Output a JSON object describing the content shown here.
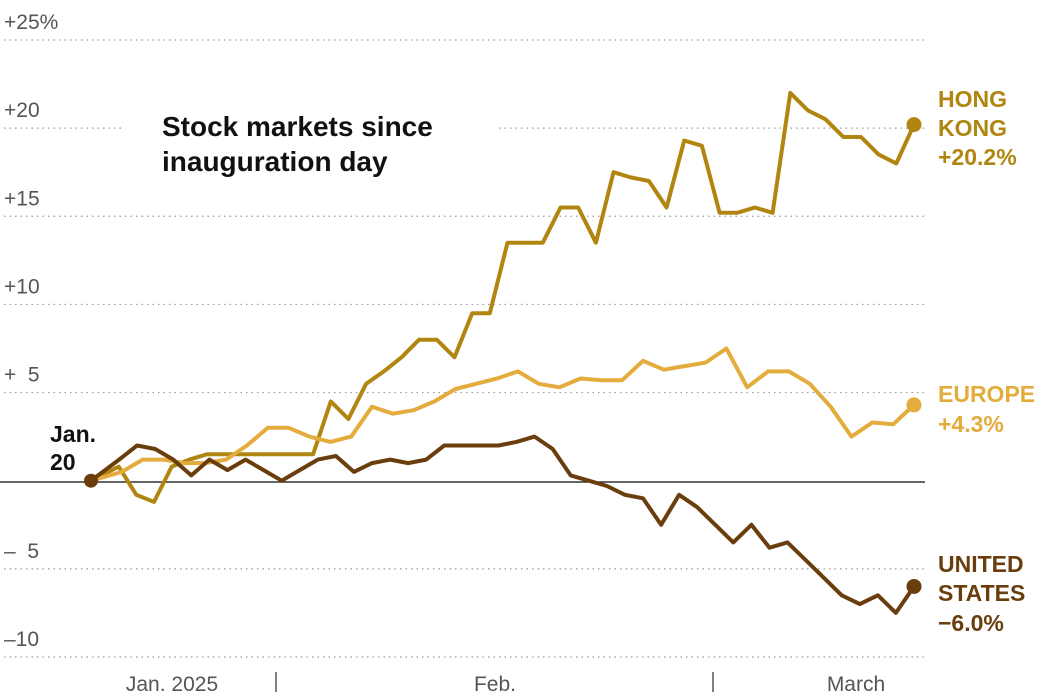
{
  "chart_data": {
    "type": "line",
    "title_lines": [
      "Stock markets since",
      "inauguration day"
    ],
    "start_label": [
      "Jan.",
      "20"
    ],
    "ylim": [
      -10,
      25
    ],
    "grid": true,
    "y_ticks": [
      {
        "value": 25,
        "label": "+25%"
      },
      {
        "value": 20,
        "label": "+20"
      },
      {
        "value": 15,
        "label": "+15"
      },
      {
        "value": 10,
        "label": "+10"
      },
      {
        "value": 5,
        "label": "+  5"
      },
      {
        "value": -5,
        "label": "–  5"
      },
      {
        "value": -10,
        "label": "–10"
      }
    ],
    "x_labels": [
      "Jan. 2025",
      "Feb.",
      "March"
    ],
    "series": [
      {
        "name": "HONG KONG",
        "label_lines": [
          "HONG",
          "KONG"
        ],
        "end_value_label": "+20.2%",
        "color": "#b08510",
        "values": [
          0,
          0.8,
          -0.8,
          -1.2,
          0.8,
          1.2,
          1.5,
          1.5,
          1.5,
          1.5,
          1.5,
          1.5,
          1.5,
          4.5,
          3.5,
          5.5,
          6.2,
          7.0,
          8.0,
          8.0,
          7.0,
          9.5,
          9.5,
          13.5,
          13.5,
          13.5,
          15.5,
          15.5,
          13.5,
          17.5,
          17.2,
          17.0,
          15.5,
          19.3,
          19.0,
          15.2,
          15.2,
          15.5,
          15.2,
          22.0,
          21.0,
          20.5,
          19.5,
          19.5,
          18.5,
          18.0,
          20.2
        ]
      },
      {
        "name": "EUROPE",
        "label_lines": [
          "EUROPE"
        ],
        "end_value_label": "+4.3%",
        "color": "#e3ac3c",
        "values": [
          0,
          0.5,
          1.2,
          1.2,
          1.0,
          1.0,
          1.2,
          2.0,
          3.0,
          3.0,
          2.5,
          2.2,
          2.5,
          4.2,
          3.8,
          4.0,
          4.5,
          5.2,
          5.5,
          5.8,
          6.2,
          5.5,
          5.3,
          5.8,
          5.7,
          5.7,
          6.8,
          6.3,
          6.5,
          6.7,
          7.5,
          5.3,
          6.2,
          6.2,
          5.5,
          4.2,
          2.5,
          3.3,
          3.2,
          4.3
        ]
      },
      {
        "name": "UNITED STATES",
        "label_lines": [
          "UNITED",
          "STATES"
        ],
        "end_value_label": "−6.0%",
        "color": "#6a3e0c",
        "values": [
          0,
          1.2,
          2.0,
          1.8,
          1.2,
          0.3,
          1.2,
          0.6,
          1.2,
          0.6,
          0.0,
          0.6,
          1.2,
          1.4,
          0.5,
          1.0,
          1.2,
          1.0,
          1.2,
          2.0,
          2.0,
          2.0,
          2.0,
          2.2,
          2.5,
          1.8,
          0.3,
          0.0,
          -0.3,
          -0.8,
          -1.0,
          -2.5,
          -0.8,
          -1.5,
          -2.5,
          -3.5,
          -2.5,
          -3.8,
          -3.5,
          -4.5,
          -5.5,
          -6.5,
          -7.0,
          -6.5,
          -7.5,
          -6.0
        ]
      }
    ]
  }
}
